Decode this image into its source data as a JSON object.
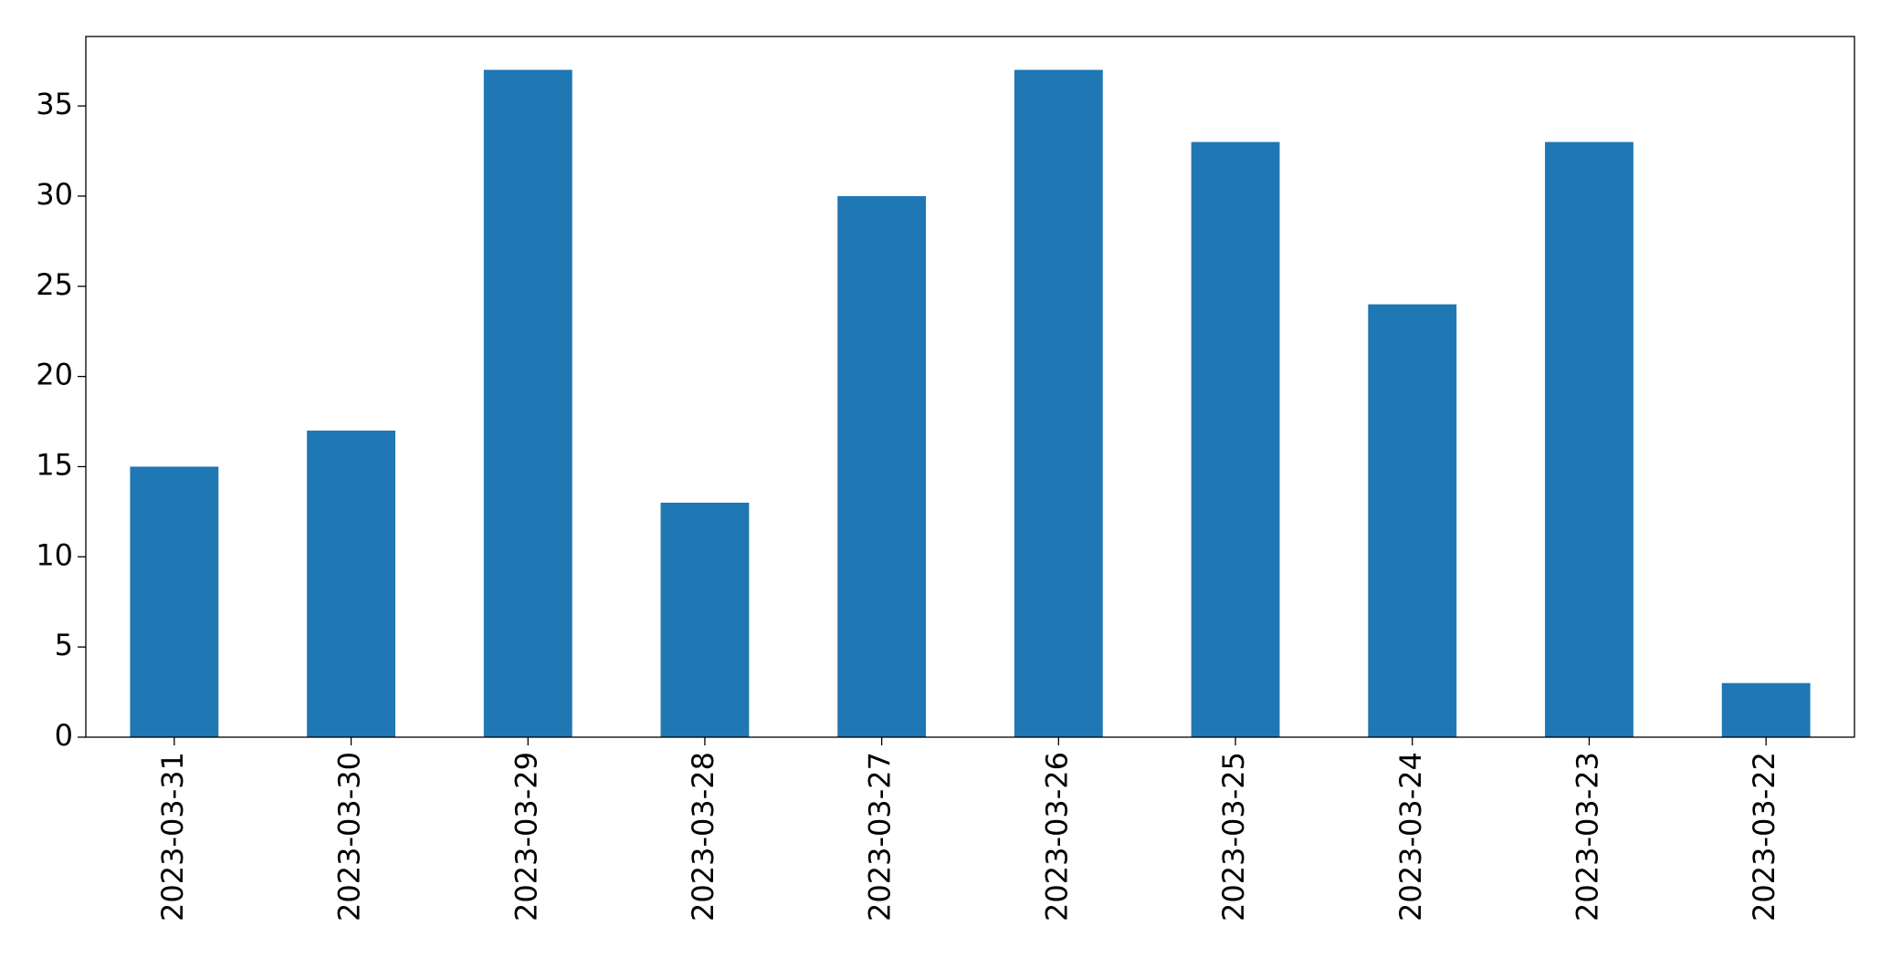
{
  "chart_data": {
    "type": "bar",
    "categories": [
      "2023-03-31",
      "2023-03-30",
      "2023-03-29",
      "2023-03-28",
      "2023-03-27",
      "2023-03-26",
      "2023-03-25",
      "2023-03-24",
      "2023-03-23",
      "2023-03-22"
    ],
    "values": [
      15,
      17,
      37,
      13,
      30,
      37,
      33,
      24,
      33,
      3
    ],
    "color": "#1f77b4",
    "ylim": [
      0,
      38.85
    ],
    "yticks": [
      0,
      5,
      10,
      15,
      20,
      25,
      30,
      35
    ],
    "grid": false
  }
}
